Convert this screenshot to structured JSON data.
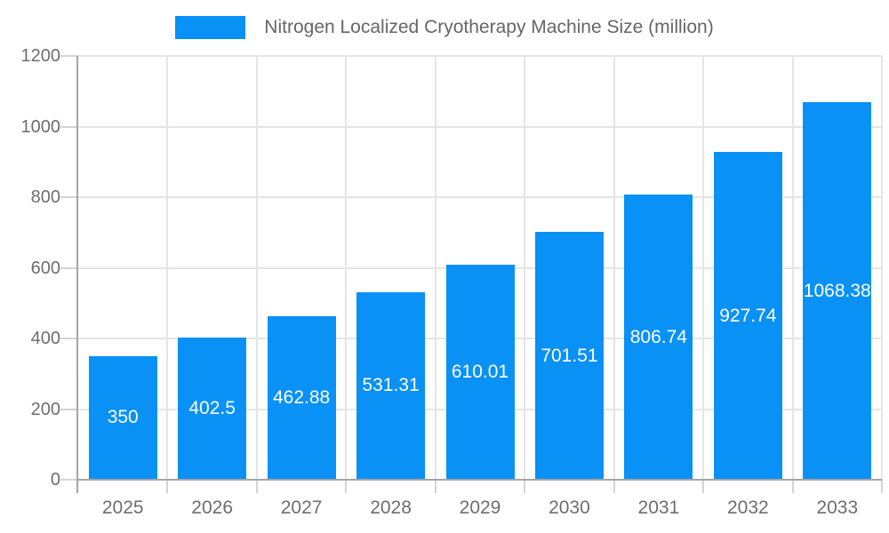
{
  "chart_data": {
    "type": "bar",
    "title": "Nitrogen Localized Cryotherapy Machine Size (million)",
    "categories": [
      "2025",
      "2026",
      "2027",
      "2028",
      "2029",
      "2030",
      "2031",
      "2032",
      "2033"
    ],
    "values": [
      350,
      402.5,
      462.88,
      531.31,
      610.01,
      701.51,
      806.74,
      927.74,
      1068.38
    ],
    "value_labels": [
      "350",
      "402.5",
      "462.88",
      "531.31",
      "610.01",
      "701.51",
      "806.74",
      "927.74",
      "1068.38"
    ],
    "xlabel": "",
    "ylabel": "",
    "ylim": [
      0,
      1200
    ],
    "y_ticks": [
      0,
      200,
      400,
      600,
      800,
      1000,
      1200
    ],
    "grid": true,
    "legend_position": "top",
    "colors": {
      "bar": "#0991F6",
      "grid": "#E5E5E5",
      "tick": "#D4D4D4",
      "axis": "#A6A6A6",
      "axis_label": "#6E6E6E",
      "title": "#666666",
      "value_label": "#FFFFFF",
      "background": "#FFFFFF"
    }
  }
}
